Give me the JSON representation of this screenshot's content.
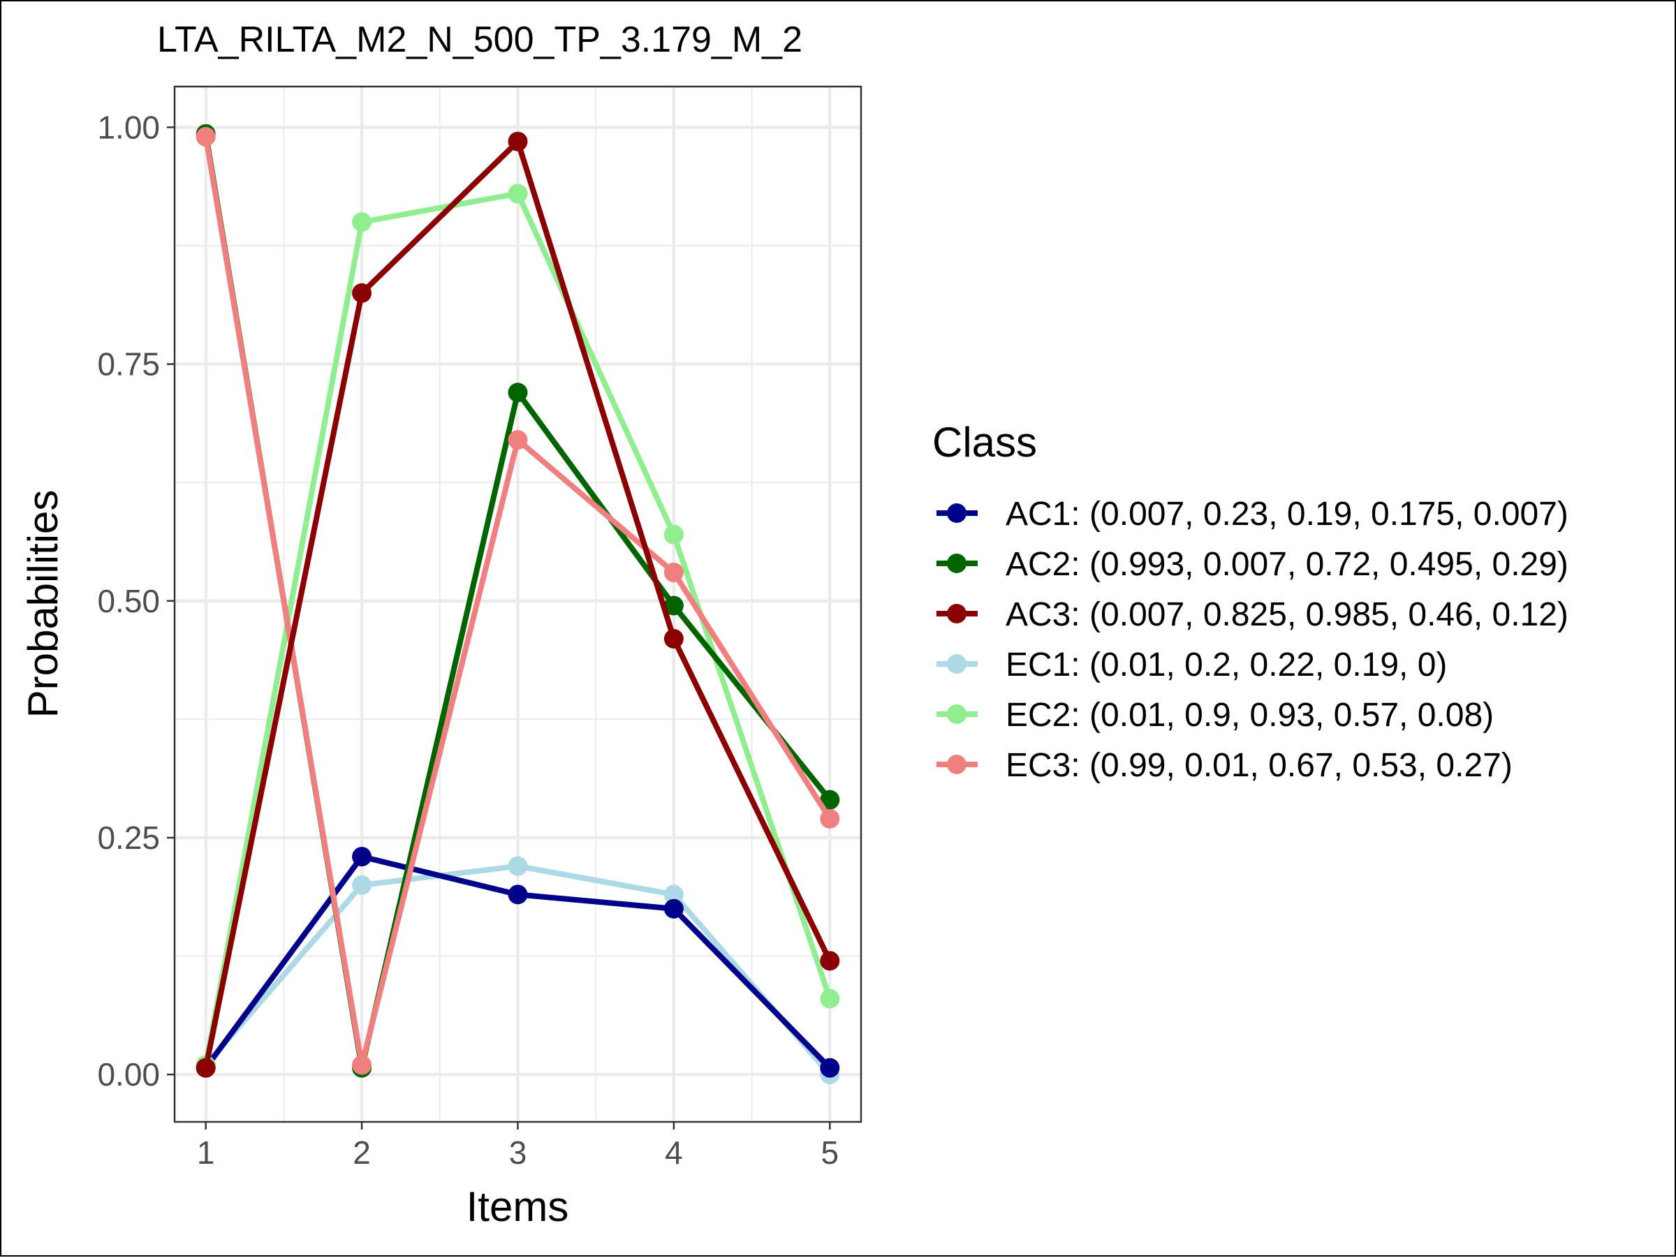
{
  "chart_data": {
    "type": "line",
    "title": "LTA_RILTA_M2_N_500_TP_3.179_M_2",
    "xlabel": "Items",
    "ylabel": "Probabilities",
    "x": [
      1,
      2,
      3,
      4,
      5
    ],
    "x_tick_labels": [
      "1",
      "2",
      "3",
      "4",
      "5"
    ],
    "xlim": [
      0.8,
      5.2
    ],
    "y_ticks": [
      0,
      0.25,
      0.5,
      0.75,
      1
    ],
    "y_tick_labels": [
      "0.00",
      "0.25",
      "0.50",
      "0.75",
      "1.00"
    ],
    "ylim": [
      -0.05,
      1.043
    ],
    "grid": true,
    "legend": {
      "title": "Class",
      "position": "right"
    },
    "series": [
      {
        "name": "AC1",
        "label": "AC1: (0.007, 0.23, 0.19, 0.175, 0.007)",
        "color": "#00008B",
        "values": [
          0.007,
          0.23,
          0.19,
          0.175,
          0.007
        ]
      },
      {
        "name": "AC2",
        "label": "AC2: (0.993, 0.007, 0.72, 0.495, 0.29)",
        "color": "#006400",
        "values": [
          0.993,
          0.007,
          0.72,
          0.495,
          0.29
        ]
      },
      {
        "name": "AC3",
        "label": "AC3: (0.007, 0.825, 0.985, 0.46, 0.12)",
        "color": "#8B0000",
        "values": [
          0.007,
          0.825,
          0.985,
          0.46,
          0.12
        ]
      },
      {
        "name": "EC1",
        "label": "EC1: (0.01, 0.2, 0.22, 0.19, 0)",
        "color": "#ADD8E6",
        "values": [
          0.01,
          0.2,
          0.22,
          0.19,
          0
        ]
      },
      {
        "name": "EC2",
        "label": "EC2: (0.01, 0.9, 0.93, 0.57, 0.08)",
        "color": "#90EE90",
        "values": [
          0.01,
          0.9,
          0.93,
          0.57,
          0.08
        ]
      },
      {
        "name": "EC3",
        "label": "EC3: (0.99, 0.01, 0.67, 0.53, 0.27)",
        "color": "#F08080",
        "values": [
          0.99,
          0.01,
          0.67,
          0.53,
          0.27
        ]
      }
    ],
    "draw_order": [
      "EC1",
      "AC1",
      "EC2",
      "AC2",
      "EC3",
      "AC3"
    ]
  }
}
